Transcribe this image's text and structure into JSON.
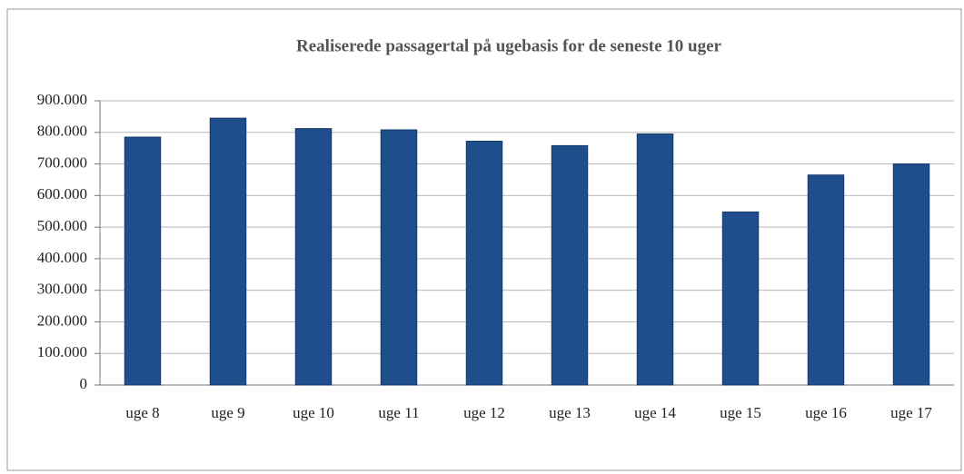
{
  "chart_data": {
    "type": "bar",
    "title": "Realiserede passagertal på ugebasis for de seneste 10 uger",
    "categories": [
      "uge 8",
      "uge 9",
      "uge 10",
      "uge 11",
      "uge 12",
      "uge 13",
      "uge 14",
      "uge 15",
      "uge 16",
      "uge 17"
    ],
    "values": [
      785000,
      845000,
      812000,
      808000,
      772000,
      758000,
      795000,
      548000,
      665000,
      700000
    ],
    "color": "#1f4e8c",
    "ylim": [
      0,
      900000
    ],
    "yticks": [
      0,
      {
        "value": 100000,
        "label": "100.000"
      },
      {
        "value": 200000,
        "label": "200.000"
      },
      {
        "value": 300000,
        "label": "300.000"
      },
      {
        "value": 400000,
        "label": "400.000"
      },
      {
        "value": 500000,
        "label": "500.000"
      },
      {
        "value": 600000,
        "label": "600.000"
      },
      {
        "value": 700000,
        "label": "700.000"
      },
      {
        "value": 800000,
        "label": "800.000"
      },
      {
        "value": 900000,
        "label": "900.000"
      }
    ],
    "grid": true
  }
}
